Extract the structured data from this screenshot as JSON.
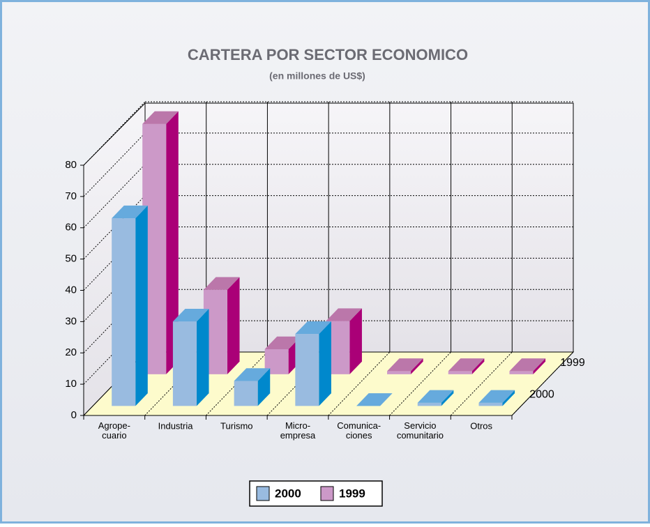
{
  "chart_data": {
    "type": "bar3d",
    "title": "CARTERA POR SECTOR ECONOMICO",
    "subtitle": "(en millones de US$)",
    "categories": [
      "Agrope-\ncuario",
      "Industria",
      "Turismo",
      "Micro-\nempresa",
      "Comunica-\nciones",
      "Servicio\ncomunitario",
      "Otros"
    ],
    "series": [
      {
        "name": "2000",
        "color": "#99bbe0",
        "top_color": "#66aadd",
        "side_color": "#0088cc",
        "values": [
          60,
          27,
          8,
          23,
          0,
          1,
          1
        ]
      },
      {
        "name": "1999",
        "color": "#cc99c8",
        "top_color": "#bb77aa",
        "side_color": "#aa0077",
        "values": [
          80,
          27,
          8,
          17,
          1,
          1,
          1
        ]
      }
    ],
    "ylim": [
      0,
      80
    ],
    "yticks": [
      0,
      10,
      20,
      30,
      40,
      50,
      60,
      70,
      80
    ],
    "grid": true,
    "legend": "bottom"
  }
}
